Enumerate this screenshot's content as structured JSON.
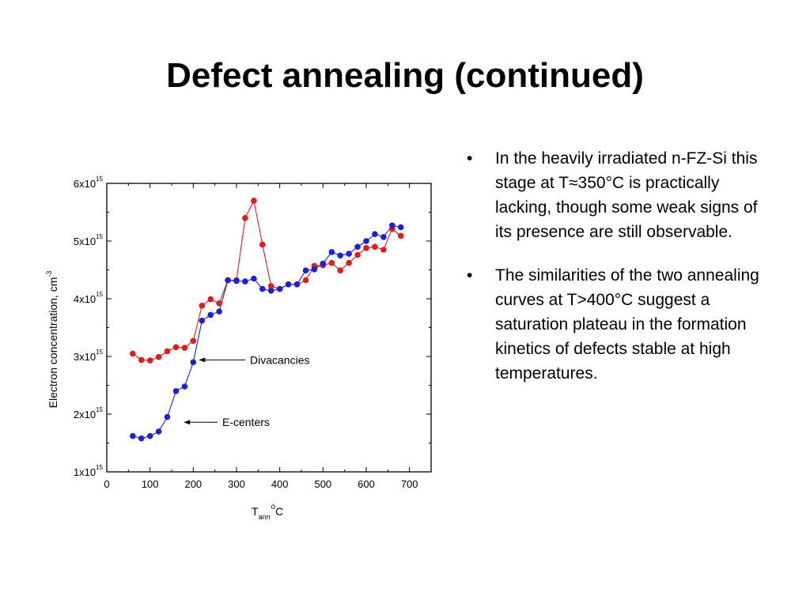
{
  "slide": {
    "title": "Defect annealing (continued)",
    "bullets": [
      "In the heavily irradiated n-FZ-Si this stage at T≈350°C  is practically lacking, though some weak signs of its presence are still observable.",
      "The similarities of the two annealing curves at T>400°C suggest a saturation plateau in the formation kinetics of defects stable at high temperatures."
    ],
    "bullet_symbol": "•"
  },
  "chart_data": {
    "type": "line",
    "xlabel": {
      "main": "T",
      "sub": "ann",
      "sup": "o",
      "unit": "C"
    },
    "ylabel": {
      "main": "Electron concentration, cm",
      "sup": "-3"
    },
    "xlim": [
      0,
      750
    ],
    "ylim": [
      1,
      6
    ],
    "xticks": [
      0,
      100,
      200,
      300,
      400,
      500,
      600,
      700
    ],
    "yticks": [
      {
        "value": 1,
        "base": "1x10",
        "exp": "15"
      },
      {
        "value": 2,
        "base": "2x10",
        "exp": "15"
      },
      {
        "value": 3,
        "base": "3x10",
        "exp": "15"
      },
      {
        "value": 4,
        "base": "4x10",
        "exp": "15"
      },
      {
        "value": 5,
        "base": "5x10",
        "exp": "15"
      },
      {
        "value": 6,
        "base": "6x10",
        "exp": "15"
      }
    ],
    "series": [
      {
        "color": "#dd1c1c",
        "points": [
          [
            60,
            3.05
          ],
          [
            80,
            2.94
          ],
          [
            100,
            2.93
          ],
          [
            120,
            2.99
          ],
          [
            140,
            3.09
          ],
          [
            160,
            3.16
          ],
          [
            180,
            3.15
          ],
          [
            200,
            3.27
          ],
          [
            220,
            3.88
          ],
          [
            240,
            3.99
          ],
          [
            260,
            3.92
          ],
          [
            280,
            4.32
          ],
          [
            300,
            4.32
          ],
          [
            320,
            5.4
          ],
          [
            340,
            5.7
          ],
          [
            360,
            4.94
          ],
          [
            380,
            4.22
          ],
          [
            400,
            4.17
          ],
          [
            420,
            4.25
          ],
          [
            440,
            4.25
          ],
          [
            460,
            4.32
          ],
          [
            480,
            4.57
          ],
          [
            500,
            4.58
          ],
          [
            520,
            4.62
          ],
          [
            540,
            4.49
          ],
          [
            560,
            4.62
          ],
          [
            580,
            4.76
          ],
          [
            600,
            4.88
          ],
          [
            620,
            4.9
          ],
          [
            640,
            4.85
          ],
          [
            660,
            5.21
          ],
          [
            680,
            5.09
          ]
        ]
      },
      {
        "color": "#1f1fd6",
        "points": [
          [
            60,
            1.62
          ],
          [
            80,
            1.58
          ],
          [
            100,
            1.62
          ],
          [
            120,
            1.7
          ],
          [
            140,
            1.95
          ],
          [
            160,
            2.4
          ],
          [
            180,
            2.48
          ],
          [
            200,
            2.9
          ],
          [
            220,
            3.62
          ],
          [
            240,
            3.72
          ],
          [
            260,
            3.78
          ],
          [
            280,
            4.32
          ],
          [
            300,
            4.31
          ],
          [
            320,
            4.3
          ],
          [
            340,
            4.35
          ],
          [
            360,
            4.17
          ],
          [
            380,
            4.14
          ],
          [
            400,
            4.17
          ],
          [
            420,
            4.25
          ],
          [
            440,
            4.25
          ],
          [
            460,
            4.49
          ],
          [
            480,
            4.51
          ],
          [
            500,
            4.61
          ],
          [
            520,
            4.81
          ],
          [
            540,
            4.75
          ],
          [
            560,
            4.78
          ],
          [
            580,
            4.9
          ],
          [
            600,
            5.0
          ],
          [
            620,
            5.12
          ],
          [
            640,
            5.07
          ],
          [
            660,
            5.27
          ],
          [
            680,
            5.24
          ]
        ]
      }
    ],
    "annotations": [
      {
        "text": "Divacancies",
        "x_data": 200,
        "y_data": 2.94
      },
      {
        "text": "E-centers",
        "x_data": 165,
        "y_data": 1.86
      }
    ]
  }
}
